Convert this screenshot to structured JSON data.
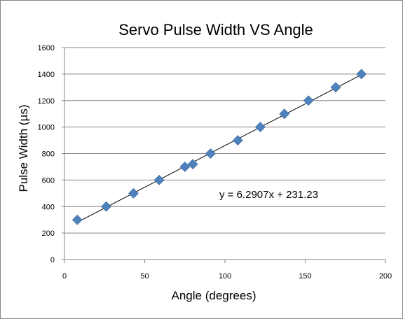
{
  "chart_data": {
    "type": "scatter",
    "title": "Servo Pulse Width VS Angle",
    "xlabel": "Angle (degrees)",
    "ylabel": "Pulse Width (µs)",
    "xlim": [
      0,
      200
    ],
    "ylim": [
      0,
      1600
    ],
    "xticks": [
      "0",
      "50",
      "100",
      "150",
      "200"
    ],
    "yticks": [
      "0",
      "200",
      "400",
      "600",
      "800",
      "1000",
      "1200",
      "1400",
      "1600"
    ],
    "grid": "horizontal",
    "legend": "none",
    "marker": "diamond",
    "series": [
      {
        "color": "#4F81BD",
        "points": [
          {
            "x": 8,
            "y": 300
          },
          {
            "x": 26,
            "y": 400
          },
          {
            "x": 43,
            "y": 500
          },
          {
            "x": 59,
            "y": 600
          },
          {
            "x": 75,
            "y": 700
          },
          {
            "x": 80,
            "y": 720
          },
          {
            "x": 91,
            "y": 800
          },
          {
            "x": 108,
            "y": 900
          },
          {
            "x": 122,
            "y": 1000
          },
          {
            "x": 137,
            "y": 1100
          },
          {
            "x": 152,
            "y": 1200
          },
          {
            "x": 169,
            "y": 1300
          },
          {
            "x": 185,
            "y": 1400
          }
        ]
      }
    ],
    "trendline": {
      "type": "linear",
      "slope": 6.2907,
      "intercept": 231.23,
      "x_range": [
        8,
        185
      ],
      "equation_label": "y = 6.2907x + 231.23"
    }
  }
}
